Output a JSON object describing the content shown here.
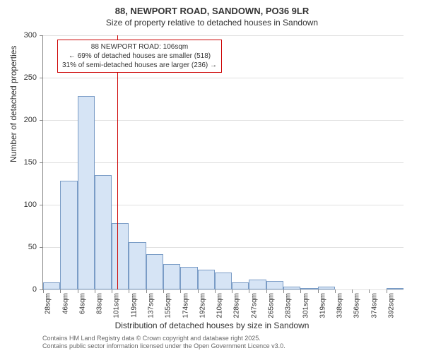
{
  "title_main": "88, NEWPORT ROAD, SANDOWN, PO36 9LR",
  "title_sub": "Size of property relative to detached houses in Sandown",
  "y_axis_label": "Number of detached properties",
  "x_axis_label": "Distribution of detached houses by size in Sandown",
  "footer_line1": "Contains HM Land Registry data © Crown copyright and database right 2025.",
  "footer_line2": "Contains public sector information licensed under the Open Government Licence v3.0.",
  "annotation": {
    "line0": "88 NEWPORT ROAD: 106sqm",
    "line1": "← 69% of detached houses are smaller (518)",
    "line2": "31% of semi-detached houses are larger (236) →"
  },
  "chart": {
    "type": "histogram",
    "ylim": [
      0,
      300
    ],
    "ytick_step": 50,
    "bar_fill": "#d6e4f5",
    "bar_border": "#7a9cc6",
    "grid_color": "#e0e0e0",
    "axis_color": "#888888",
    "reference_line_color": "#cc0000",
    "annotation_border": "#cc0000",
    "background": "#ffffff",
    "reference_x_value": 106,
    "x_start": 28,
    "x_step": 18,
    "x_labels": [
      "28sqm",
      "46sqm",
      "64sqm",
      "83sqm",
      "101sqm",
      "119sqm",
      "137sqm",
      "155sqm",
      "174sqm",
      "192sqm",
      "210sqm",
      "228sqm",
      "247sqm",
      "265sqm",
      "283sqm",
      "301sqm",
      "319sqm",
      "338sqm",
      "356sqm",
      "374sqm",
      "392sqm"
    ],
    "values": [
      8,
      128,
      228,
      135,
      78,
      56,
      42,
      30,
      27,
      23,
      20,
      8,
      12,
      10,
      3,
      2,
      3,
      0,
      0,
      0,
      1
    ],
    "title_fontsize": 13,
    "subtitle_fontsize": 12,
    "axis_label_fontsize": 12,
    "tick_fontsize": 10,
    "annotation_fontsize": 10
  }
}
